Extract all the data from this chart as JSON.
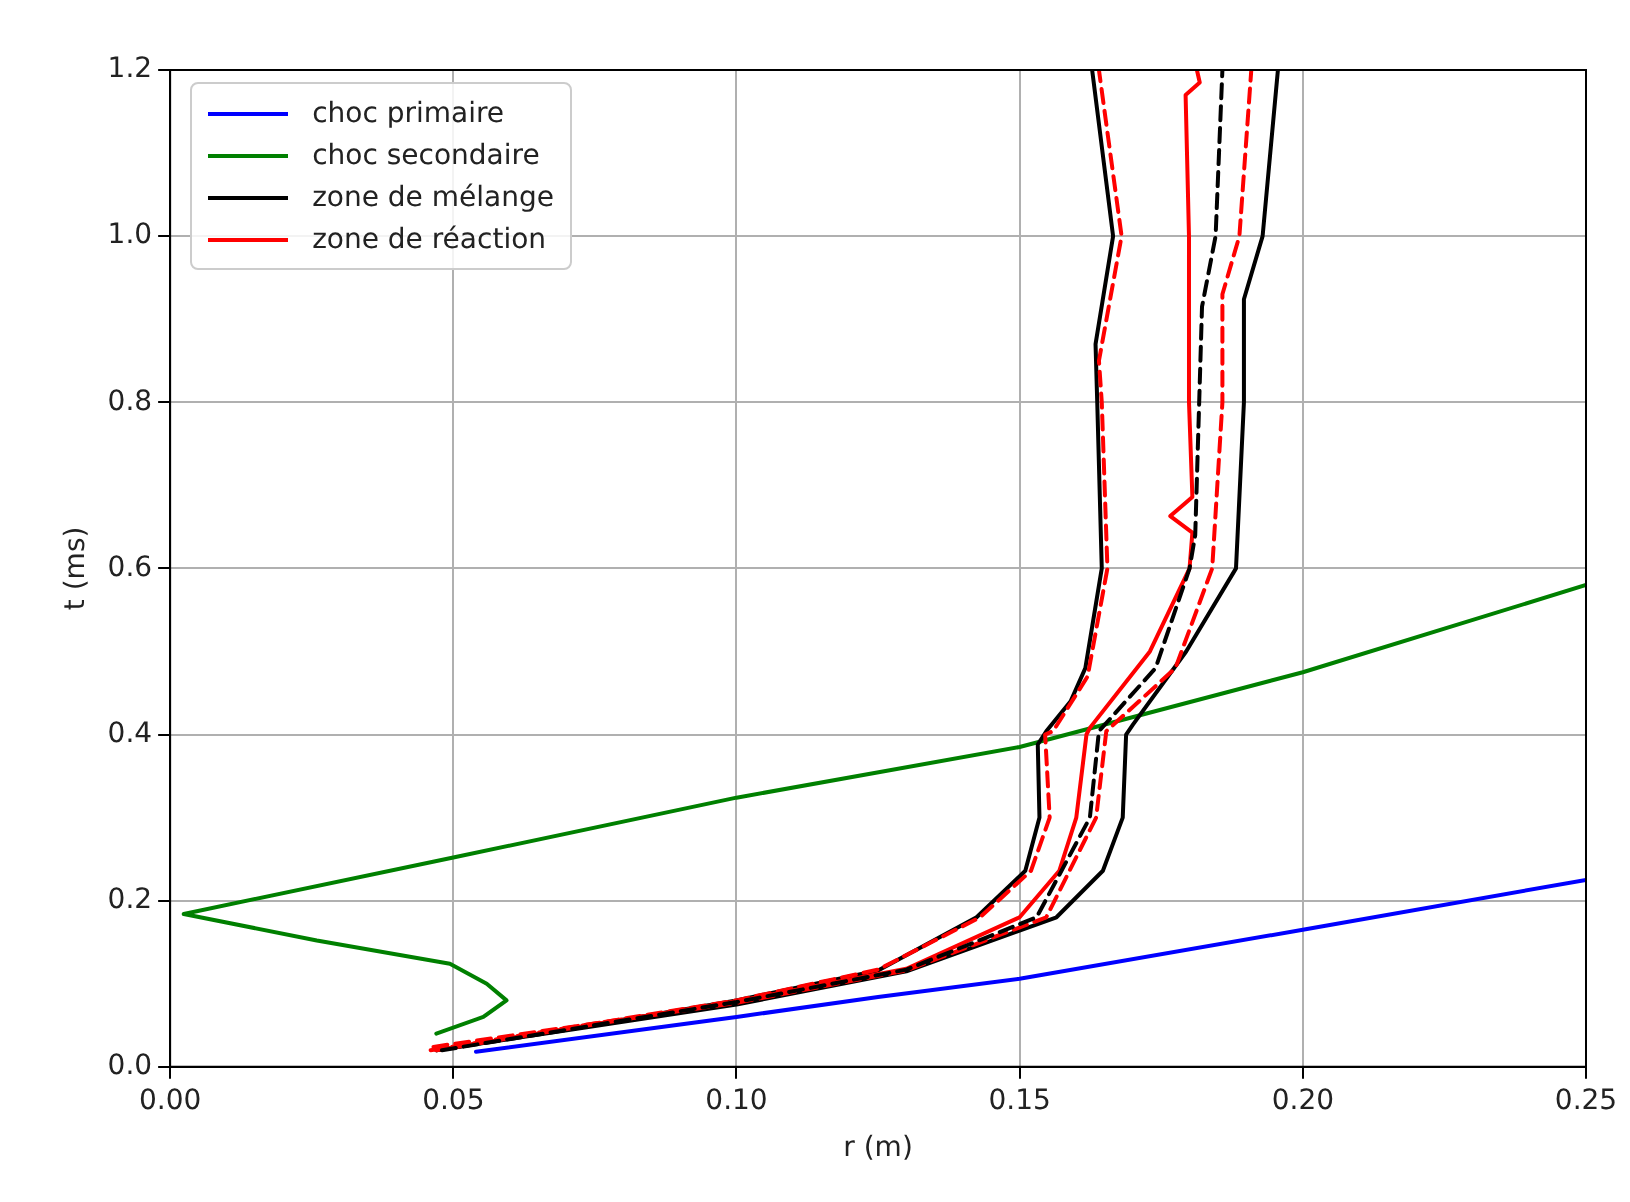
{
  "chart_data": {
    "type": "line",
    "xlabel": "r (m)",
    "ylabel": "t (ms)",
    "xlim": [
      0,
      0.25
    ],
    "ylim": [
      0,
      1.2
    ],
    "xticks": [
      {
        "value": 0,
        "label": "0.00"
      },
      {
        "value": 0.05,
        "label": "0.05"
      },
      {
        "value": 0.1,
        "label": "0.10"
      },
      {
        "value": 0.15,
        "label": "0.15"
      },
      {
        "value": 0.2,
        "label": "0.20"
      },
      {
        "value": 0.25,
        "label": "0.25"
      }
    ],
    "yticks": [
      {
        "value": 0,
        "label": "0.0"
      },
      {
        "value": 0.2,
        "label": "0.2"
      },
      {
        "value": 0.4,
        "label": "0.4"
      },
      {
        "value": 0.6,
        "label": "0.6"
      },
      {
        "value": 0.8,
        "label": "0.8"
      },
      {
        "value": 1,
        "label": "1.0"
      },
      {
        "value": 1.2,
        "label": "1.2"
      }
    ],
    "grid": true,
    "legend": "top left",
    "marker": "none",
    "series": [
      {
        "name": "choc primaire",
        "color": "#0000ff",
        "line_style": "solid",
        "x": [
          0.054,
          0.1,
          0.125,
          0.15,
          0.2,
          0.25
        ],
        "values": [
          0.018,
          0.06,
          0.084,
          0.106,
          0.165,
          0.225
        ]
      },
      {
        "name": "choc secondaire",
        "color": "#008000",
        "line_style": "solid",
        "x": [
          0.047,
          0.0553,
          0.0594,
          0.0559,
          0.0494,
          0.0259,
          0.0024,
          0.05,
          0.1,
          0.15,
          0.2,
          0.25
        ],
        "values": [
          0.04,
          0.06,
          0.08,
          0.1,
          0.124,
          0.152,
          0.184,
          0.252,
          0.324,
          0.385,
          0.475,
          0.58
        ]
      },
      {
        "name": "zone de mélange",
        "color": "#000000",
        "line_style": "solid",
        "x": [
          0.047,
          0.07,
          0.1,
          0.125,
          0.1424,
          0.151,
          0.1535,
          0.1532,
          0.1547,
          0.159,
          0.1616,
          0.1645,
          0.1637,
          0.1634,
          0.1665,
          0.1628
        ],
        "values": [
          0.02,
          0.045,
          0.08,
          0.116,
          0.18,
          0.236,
          0.3,
          0.388,
          0.404,
          0.44,
          0.48,
          0.6,
          0.8,
          0.87,
          1.0,
          1.2
        ]
      },
      {
        "color": "#000000",
        "line_style": "solid",
        "x": [
          0.047,
          0.1,
          0.13,
          0.1565,
          0.1647,
          0.1682,
          0.1688,
          0.17,
          0.1794,
          0.1882,
          0.1896,
          0.1896,
          0.1929,
          0.1956
        ],
        "values": [
          0.02,
          0.075,
          0.115,
          0.18,
          0.236,
          0.3,
          0.4,
          0.412,
          0.5,
          0.6,
          0.8,
          0.924,
          1.0,
          1.2
        ]
      },
      {
        "color": "#000000",
        "line_style": "dashed",
        "x": [
          0.048,
          0.1,
          0.13,
          0.153,
          0.1624,
          0.164,
          0.174,
          0.18,
          0.181,
          0.1817,
          0.1822,
          0.1846,
          0.1858
        ],
        "values": [
          0.02,
          0.078,
          0.117,
          0.18,
          0.3,
          0.404,
          0.48,
          0.6,
          0.64,
          0.8,
          0.915,
          1.0,
          1.2
        ]
      },
      {
        "name": "zone de réaction",
        "color": "#ff0000",
        "line_style": "solid",
        "x": [
          0.047,
          0.1,
          0.13,
          0.15,
          0.157,
          0.16,
          0.1618,
          0.1624,
          0.173,
          0.18,
          0.1805,
          0.1766,
          0.1805,
          0.1799,
          0.1799,
          0.1793,
          0.1818,
          0.1813
        ],
        "values": [
          0.02,
          0.079,
          0.118,
          0.18,
          0.236,
          0.3,
          0.4,
          0.408,
          0.5,
          0.6,
          0.643,
          0.663,
          0.686,
          0.8,
          1.0,
          1.17,
          1.185,
          1.2
        ]
      },
      {
        "color": "#ff0000",
        "line_style": "dashed",
        "x": [
          0.046,
          0.1,
          0.125,
          0.143,
          0.152,
          0.1553,
          0.1545,
          0.1559,
          0.162,
          0.1655,
          0.1645,
          0.164,
          0.168,
          0.164
        ],
        "values": [
          0.02,
          0.08,
          0.117,
          0.18,
          0.236,
          0.3,
          0.4,
          0.404,
          0.47,
          0.6,
          0.8,
          0.85,
          1.0,
          1.2
        ]
      },
      {
        "color": "#ff0000",
        "line_style": "dashed",
        "x": [
          0.0465,
          0.1,
          0.13,
          0.1547,
          0.1635,
          0.1653,
          0.1775,
          0.184,
          0.1858,
          0.1858,
          0.1888,
          0.1909
        ],
        "values": [
          0.024,
          0.077,
          0.116,
          0.18,
          0.3,
          0.404,
          0.48,
          0.6,
          0.8,
          0.93,
          1.0,
          1.2
        ]
      }
    ]
  }
}
